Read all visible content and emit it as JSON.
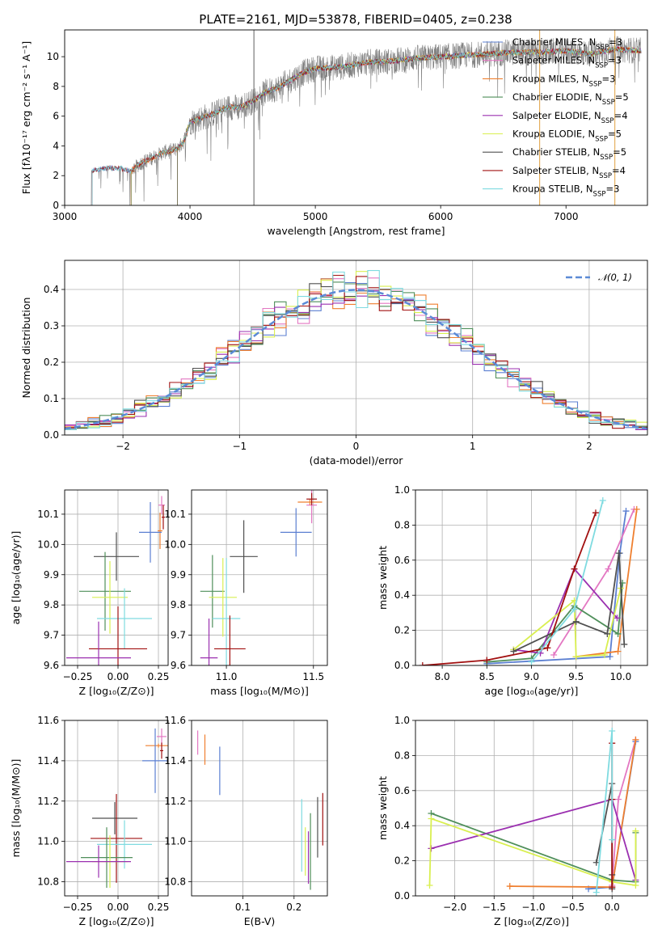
{
  "colors": {
    "chabrier_miles": "#5b7fd1",
    "salpeter_miles": "#e377c2",
    "kroupa_miles": "#ef7f2f",
    "chabrier_elodie": "#4f8f5a",
    "salpeter_elodie": "#9b30b0",
    "kroupa_elodie": "#d9ef50",
    "chabrier_stelib": "#505050",
    "salpeter_stelib": "#a11010",
    "kroupa_stelib": "#7fdbe0",
    "data": "#808080",
    "normal": "#5b8ad6"
  },
  "chart_data": [
    {
      "type": "line",
      "title": "PLATE=2161, MJD=53878, FIBERID=0405, z=0.238",
      "xlabel": "wavelength [Angstrom, rest frame]",
      "ylabel": "Flux [fλ10⁻¹⁷ erg cm⁻² s⁻¹ A⁻¹]",
      "xlim": [
        3000,
        7650
      ],
      "ylim": [
        0,
        11.8
      ],
      "xticks": [
        "3000",
        "4000",
        "5000",
        "6000",
        "7000"
      ],
      "yticks": [
        "0",
        "2",
        "4",
        "6",
        "8",
        "10"
      ],
      "legend_position": "top-right",
      "legend": [
        {
          "name": "Chabrier MILES, N",
          "sub": "SSP",
          "post": "=3",
          "color": "#5b7fd1"
        },
        {
          "name": "Salpeter MILES, N",
          "sub": "SSP",
          "post": "=3",
          "color": "#e377c2"
        },
        {
          "name": "Kroupa MILES, N",
          "sub": "SSP",
          "post": "=3",
          "color": "#ef7f2f"
        },
        {
          "name": "Chabrier ELODIE, N",
          "sub": "SSP",
          "post": "=5",
          "color": "#4f8f5a"
        },
        {
          "name": "Salpeter ELODIE, N",
          "sub": "SSP",
          "post": "=4",
          "color": "#9b30b0"
        },
        {
          "name": "Kroupa ELODIE, N",
          "sub": "SSP",
          "post": "=5",
          "color": "#d9ef50"
        },
        {
          "name": "Chabrier STELIB, N",
          "sub": "SSP",
          "post": "=5",
          "color": "#505050"
        },
        {
          "name": "Salpeter STELIB, N",
          "sub": "SSP",
          "post": "=4",
          "color": "#a11010"
        },
        {
          "name": "Kroupa STELIB, N",
          "sub": "SSP",
          "post": "=3",
          "color": "#7fdbe0"
        }
      ],
      "continuum": {
        "x": [
          3220,
          3300,
          3450,
          3530,
          3600,
          3700,
          3800,
          3900,
          3950,
          4000,
          4100,
          4200,
          4300,
          4400,
          4500,
          4600,
          4700,
          4800,
          4900,
          5000,
          5200,
          5400,
          5600,
          5800,
          6000,
          6200,
          6400,
          6600,
          6800,
          7000,
          7200,
          7400,
          7600
        ],
        "y": [
          2.3,
          2.5,
          2.5,
          2.3,
          2.8,
          3.2,
          3.6,
          3.8,
          4.3,
          5.6,
          5.9,
          6.2,
          6.6,
          6.6,
          7.0,
          7.6,
          7.9,
          8.4,
          8.9,
          9.2,
          9.3,
          9.6,
          9.7,
          9.9,
          10.0,
          10.1,
          10.2,
          10.3,
          10.3,
          10.4,
          10.2,
          10.5,
          10.4
        ]
      },
      "model_starts": [
        3220,
        3530,
        3530,
        3530,
        3900,
        3900,
        3900,
        3220,
        3220
      ],
      "data_start": 3210,
      "spikes": [
        {
          "x": 4510,
          "y": 11.8
        },
        {
          "x": 6790,
          "y": 11.8
        },
        {
          "x": 7390,
          "y": 11.8
        }
      ]
    },
    {
      "type": "bar",
      "xlabel": "(data-model)/error",
      "ylabel": "Normed distribution",
      "xlim": [
        -2.5,
        2.5
      ],
      "ylim": [
        0,
        0.48
      ],
      "xticks": [
        "−2",
        "−1",
        "0",
        "1",
        "2"
      ],
      "yticks": [
        "0.0",
        "0.1",
        "0.2",
        "0.3",
        "0.4"
      ],
      "legend_position": "top-right",
      "legend": [
        {
          "name": "𝒩(0, 1)",
          "color": "#5b8ad6"
        }
      ],
      "bin_width": 0.1
    },
    {
      "type": "scatter",
      "xlabel": "Z [log₁₀(Z/Z⊙)]",
      "ylabel": "age  [log₁₀(age/yr)]",
      "xlim": [
        -0.33,
        0.31
      ],
      "ylim": [
        9.6,
        10.18
      ],
      "xticks": [
        "−0.25",
        "0.00",
        "0.25"
      ],
      "yticks": [
        "9.6",
        "9.7",
        "9.8",
        "9.9",
        "10.0",
        "10.1"
      ],
      "points": [
        {
          "x": 0.27,
          "y": 10.13,
          "xerr": 0.02,
          "yerr": 0.03,
          "color": "#e377c2"
        },
        {
          "x": 0.28,
          "y": 10.09,
          "xerr": 0.01,
          "yerr": 0.04,
          "color": "#a11010"
        },
        {
          "x": 0.26,
          "y": 10.045,
          "xerr": 0.015,
          "yerr": 0.06,
          "color": "#ef7f2f"
        },
        {
          "x": 0.2,
          "y": 10.04,
          "xerr": 0.07,
          "yerr": 0.1,
          "color": "#5b7fd1"
        },
        {
          "x": -0.01,
          "y": 9.96,
          "xerr": 0.14,
          "yerr": 0.08,
          "color": "#505050"
        },
        {
          "x": -0.08,
          "y": 9.845,
          "xerr": 0.16,
          "yerr": 0.13,
          "color": "#4f8f5a"
        },
        {
          "x": -0.05,
          "y": 9.825,
          "xerr": 0.11,
          "yerr": 0.12,
          "color": "#d9ef50"
        },
        {
          "x": 0.04,
          "y": 9.755,
          "xerr": 0.17,
          "yerr": 0.1,
          "color": "#7fdbe0"
        },
        {
          "x": 0.0,
          "y": 9.655,
          "xerr": 0.18,
          "yerr": 0.14,
          "color": "#a11010"
        },
        {
          "x": -0.12,
          "y": 9.625,
          "xerr": 0.2,
          "yerr": 0.12,
          "color": "#9b30b0"
        }
      ]
    },
    {
      "type": "scatter",
      "xlabel": "mass [log₁₀(M/M⊙)]",
      "ylabel": "",
      "xlim": [
        10.8,
        11.58
      ],
      "ylim": [
        9.6,
        10.18
      ],
      "xticks": [
        "11.0",
        "11.5"
      ],
      "yticks": [
        "9.6",
        "9.7",
        "9.8",
        "9.9",
        "10.0",
        "10.1"
      ],
      "points": [
        {
          "x": 11.49,
          "y": 10.13,
          "xerr": 0.03,
          "yerr": 0.06,
          "color": "#e377c2"
        },
        {
          "x": 11.48,
          "y": 10.14,
          "xerr": 0.07,
          "yerr": 0.01,
          "color": "#ef7f2f"
        },
        {
          "x": 11.49,
          "y": 10.15,
          "xerr": 0.03,
          "yerr": 0.02,
          "color": "#a11010"
        },
        {
          "x": 11.4,
          "y": 10.04,
          "xerr": 0.09,
          "yerr": 0.08,
          "color": "#5b7fd1"
        },
        {
          "x": 11.1,
          "y": 9.96,
          "xerr": 0.08,
          "yerr": 0.12,
          "color": "#505050"
        },
        {
          "x": 10.92,
          "y": 9.845,
          "xerr": 0.07,
          "yerr": 0.12,
          "color": "#4f8f5a"
        },
        {
          "x": 10.98,
          "y": 9.825,
          "xerr": 0.08,
          "yerr": 0.13,
          "color": "#d9ef50"
        },
        {
          "x": 11.0,
          "y": 9.755,
          "xerr": 0.08,
          "yerr": 0.2,
          "color": "#7fdbe0"
        },
        {
          "x": 11.02,
          "y": 9.655,
          "xerr": 0.09,
          "yerr": 0.11,
          "color": "#a11010"
        },
        {
          "x": 10.9,
          "y": 9.625,
          "xerr": 0.05,
          "yerr": 0.13,
          "color": "#9b30b0"
        }
      ]
    },
    {
      "type": "line",
      "xlabel": "age  [log₁₀(age/yr)]",
      "ylabel": "mass weight",
      "xlim": [
        7.7,
        10.3
      ],
      "ylim": [
        0,
        1
      ],
      "xticks": [
        "8.0",
        "8.5",
        "9.0",
        "9.5",
        "10.0"
      ],
      "yticks": [
        "0.0",
        "0.2",
        "0.4",
        "0.6",
        "0.8",
        "1.0"
      ],
      "series": [
        {
          "color": "#5b7fd1",
          "x": [
            8.5,
            9.88,
            9.99,
            10.06
          ],
          "y": [
            0.01,
            0.05,
            0.64,
            0.88
          ]
        },
        {
          "color": "#e377c2",
          "x": [
            9.25,
            9.86,
            10.15
          ],
          "y": [
            0.06,
            0.55,
            0.89
          ]
        },
        {
          "color": "#ef7f2f",
          "x": [
            9.5,
            9.97,
            10.18
          ],
          "y": [
            0.05,
            0.08,
            0.89
          ]
        },
        {
          "color": "#4f8f5a",
          "x": [
            8.5,
            9.0,
            9.48,
            9.97,
            10.02
          ],
          "y": [
            0.02,
            0.04,
            0.34,
            0.18,
            0.47
          ]
        },
        {
          "color": "#9b30b0",
          "x": [
            8.8,
            9.1,
            9.48,
            9.96
          ],
          "y": [
            0.09,
            0.07,
            0.55,
            0.27
          ]
        },
        {
          "color": "#d9ef50",
          "x": [
            8.8,
            9.48,
            9.5,
            9.82,
            10.0
          ],
          "y": [
            0.09,
            0.37,
            0.05,
            0.06,
            0.44
          ]
        },
        {
          "color": "#505050",
          "x": [
            8.8,
            9.5,
            9.85,
            9.98,
            10.04
          ],
          "y": [
            0.08,
            0.25,
            0.18,
            0.64,
            0.12
          ]
        },
        {
          "color": "#a11010",
          "x": [
            7.78,
            8.5,
            9.18,
            9.48,
            9.72
          ],
          "y": [
            0.0,
            0.03,
            0.1,
            0.55,
            0.87
          ]
        },
        {
          "color": "#7fdbe0",
          "x": [
            9.0,
            9.48,
            9.8
          ],
          "y": [
            0.02,
            0.32,
            0.94
          ]
        }
      ]
    },
    {
      "type": "scatter",
      "xlabel": "Z [log₁₀(Z/Z⊙)]",
      "ylabel": "mass [log₁₀(M/M⊙)]",
      "xlim": [
        -0.33,
        0.31
      ],
      "ylim": [
        10.73,
        11.6
      ],
      "xticks": [
        "−0.25",
        "0.00",
        "0.25"
      ],
      "yticks": [
        "10.8",
        "11.0",
        "11.2",
        "11.4",
        "11.6"
      ],
      "points": [
        {
          "x": 0.27,
          "y": 11.52,
          "xerr": 0.03,
          "yerr": 0.04,
          "color": "#e377c2"
        },
        {
          "x": 0.25,
          "y": 11.475,
          "xerr": 0.08,
          "yerr": 0.01,
          "color": "#ef7f2f"
        },
        {
          "x": 0.27,
          "y": 11.45,
          "xerr": 0.01,
          "yerr": 0.04,
          "color": "#a11010"
        },
        {
          "x": 0.23,
          "y": 11.4,
          "xerr": 0.08,
          "yerr": 0.16,
          "color": "#5b7fd1"
        },
        {
          "x": -0.02,
          "y": 11.115,
          "xerr": 0.14,
          "yerr": 0.08,
          "color": "#505050"
        },
        {
          "x": -0.01,
          "y": 11.015,
          "xerr": 0.16,
          "yerr": 0.22,
          "color": "#a11010"
        },
        {
          "x": 0.04,
          "y": 10.985,
          "xerr": 0.17,
          "yerr": 0.12,
          "color": "#7fdbe0"
        },
        {
          "x": -0.07,
          "y": 10.92,
          "xerr": 0.16,
          "yerr": 0.15,
          "color": "#4f8f5a"
        },
        {
          "x": -0.05,
          "y": 10.9,
          "xerr": 0.11,
          "yerr": 0.13,
          "color": "#d9ef50"
        },
        {
          "x": -0.12,
          "y": 10.9,
          "xerr": 0.2,
          "yerr": 0.08,
          "color": "#9b30b0"
        }
      ]
    },
    {
      "type": "scatter",
      "xlabel": "E(B-V)",
      "ylabel": "",
      "xlim": [
        0.0,
        0.265
      ],
      "ylim": [
        10.73,
        11.6
      ],
      "xticks": [
        "0.1",
        "0.2"
      ],
      "yticks": [
        "10.8",
        "11.0",
        "11.2",
        "11.4",
        "11.6"
      ],
      "points": [
        {
          "x": 0.012,
          "y": 11.49,
          "yerr": 0.06,
          "color": "#e377c2"
        },
        {
          "x": 0.026,
          "y": 11.455,
          "yerr": 0.075,
          "color": "#ef7f2f"
        },
        {
          "x": 0.055,
          "y": 11.35,
          "yerr": 0.12,
          "color": "#5b7fd1"
        },
        {
          "x": 0.215,
          "y": 11.03,
          "yerr": 0.18,
          "color": "#7fdbe0"
        },
        {
          "x": 0.222,
          "y": 10.95,
          "yerr": 0.12,
          "color": "#d9ef50"
        },
        {
          "x": 0.228,
          "y": 10.92,
          "yerr": 0.13,
          "color": "#9b30b0"
        },
        {
          "x": 0.232,
          "y": 10.95,
          "yerr": 0.19,
          "color": "#4f8f5a"
        },
        {
          "x": 0.246,
          "y": 11.07,
          "yerr": 0.15,
          "color": "#505050"
        },
        {
          "x": 0.256,
          "y": 11.11,
          "yerr": 0.13,
          "color": "#a11010"
        }
      ]
    },
    {
      "type": "line",
      "xlabel": "Z [log₁₀(Z/Z⊙)]",
      "ylabel": "mass weight",
      "xlim": [
        -2.5,
        0.45
      ],
      "ylim": [
        0,
        1
      ],
      "xticks": [
        "−2.0",
        "−1.5",
        "−1.0",
        "−0.5",
        "0.0"
      ],
      "yticks": [
        "0.0",
        "0.2",
        "0.4",
        "0.6",
        "0.8",
        "1.0"
      ],
      "series": [
        {
          "color": "#5b7fd1",
          "x": [
            -0.3,
            0.0,
            0.3
          ],
          "y": [
            0.04,
            0.05,
            0.88
          ]
        },
        {
          "color": "#e377c2",
          "x": [
            0.0,
            0.08,
            0.3
          ],
          "y": [
            0.06,
            0.55,
            0.89
          ]
        },
        {
          "color": "#ef7f2f",
          "x": [
            -1.3,
            0.0,
            0.3
          ],
          "y": [
            0.055,
            0.05,
            0.89
          ]
        },
        {
          "color": "#4f8f5a",
          "x": [
            -2.3,
            0.0,
            0.3,
            0.3
          ],
          "y": [
            0.47,
            0.09,
            0.08,
            0.36
          ]
        },
        {
          "color": "#9b30b0",
          "x": [
            -2.3,
            0.0,
            0.3
          ],
          "y": [
            0.27,
            0.55,
            0.09
          ]
        },
        {
          "color": "#d9ef50",
          "x": [
            -2.32,
            -2.3,
            0.0,
            0.3,
            0.3
          ],
          "y": [
            0.06,
            0.44,
            0.08,
            0.06,
            0.37
          ]
        },
        {
          "color": "#505050",
          "x": [
            -0.2,
            0.0,
            0.0,
            0.0
          ],
          "y": [
            0.19,
            0.64,
            0.12,
            0.04
          ]
        },
        {
          "color": "#a11010",
          "x": [
            0.0,
            0.0,
            0.0
          ],
          "y": [
            0.87,
            0.55,
            0.05
          ]
        },
        {
          "color": "#7fdbe0",
          "x": [
            -0.2,
            0.0,
            0.0
          ],
          "y": [
            0.02,
            0.94,
            0.32
          ]
        }
      ]
    }
  ]
}
